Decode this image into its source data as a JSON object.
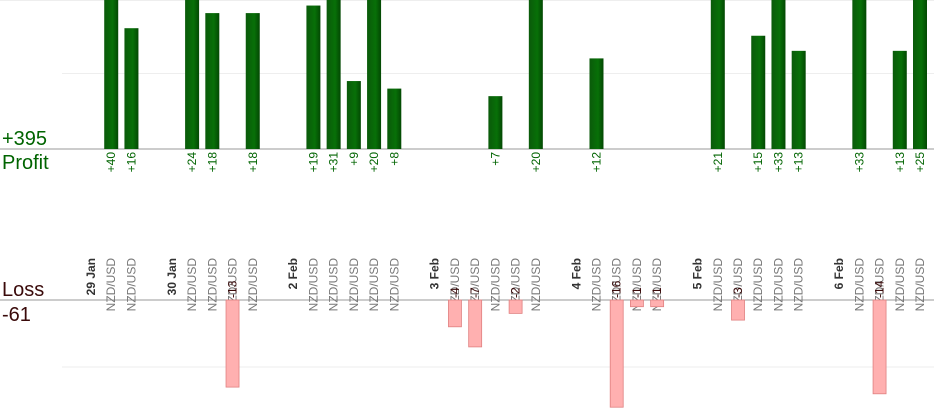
{
  "chart_data": {
    "type": "bar",
    "categories": [
      "29 Jan",
      "NZD/USD",
      "NZD/USD",
      null,
      "30 Jan",
      "NZD/USD",
      "NZD/USD",
      "NZD/USD",
      "NZD/USD",
      null,
      "2 Feb",
      "NZD/USD",
      "NZD/USD",
      "NZD/USD",
      "NZD/USD",
      "NZD/USD",
      null,
      "3 Feb",
      "NZD/USD",
      "NZD/USD",
      "NZD/USD",
      "NZD/USD",
      "NZD/USD",
      null,
      "4 Feb",
      "NZD/USD",
      "NZD/USD",
      "NZD/USD",
      "NZD/USD",
      null,
      "5 Feb",
      "NZD/USD",
      "NZD/USD",
      "NZD/USD",
      "NZD/USD",
      "NZD/USD",
      null,
      "6 Feb",
      "NZD/USD",
      "NZD/USD",
      "NZD/USD",
      "NZD/USD"
    ],
    "series": [
      {
        "name": "Profit",
        "total": "+395",
        "color": "#006400",
        "values": [
          null,
          40,
          16,
          null,
          null,
          24,
          18,
          null,
          18,
          null,
          null,
          19,
          31,
          9,
          20,
          8,
          null,
          null,
          null,
          null,
          7,
          null,
          20,
          null,
          null,
          12,
          null,
          null,
          null,
          null,
          null,
          21,
          null,
          15,
          33,
          13,
          null,
          null,
          33,
          null,
          13,
          25
        ],
        "value_labels": [
          null,
          "+40",
          "+16",
          null,
          null,
          "+24",
          "+18",
          null,
          "+18",
          null,
          null,
          "+19",
          "+31",
          "+9",
          "+20",
          "+8",
          null,
          null,
          null,
          null,
          "+7",
          null,
          "+20",
          null,
          null,
          "+12",
          null,
          null,
          null,
          null,
          null,
          "+21",
          null,
          "+15",
          "+33",
          "+13",
          null,
          null,
          "+33",
          null,
          "+13",
          "+25"
        ]
      },
      {
        "name": "Loss",
        "total": "-61",
        "color": "#ffb0b0",
        "axis": "y2",
        "values": [
          null,
          null,
          null,
          null,
          null,
          null,
          null,
          -13,
          null,
          null,
          null,
          null,
          null,
          null,
          null,
          null,
          null,
          null,
          -4,
          -7,
          null,
          -2,
          null,
          null,
          null,
          null,
          -16,
          -1,
          -1,
          null,
          null,
          null,
          -3,
          null,
          null,
          null,
          null,
          null,
          null,
          -14,
          null,
          null
        ]
      }
    ],
    "ylim": [
      0,
      20
    ],
    "yticks": [
      0,
      10,
      20
    ],
    "y2lim": [
      0,
      -18
    ],
    "y2ticks": [
      0,
      -10
    ],
    "grid": true
  }
}
